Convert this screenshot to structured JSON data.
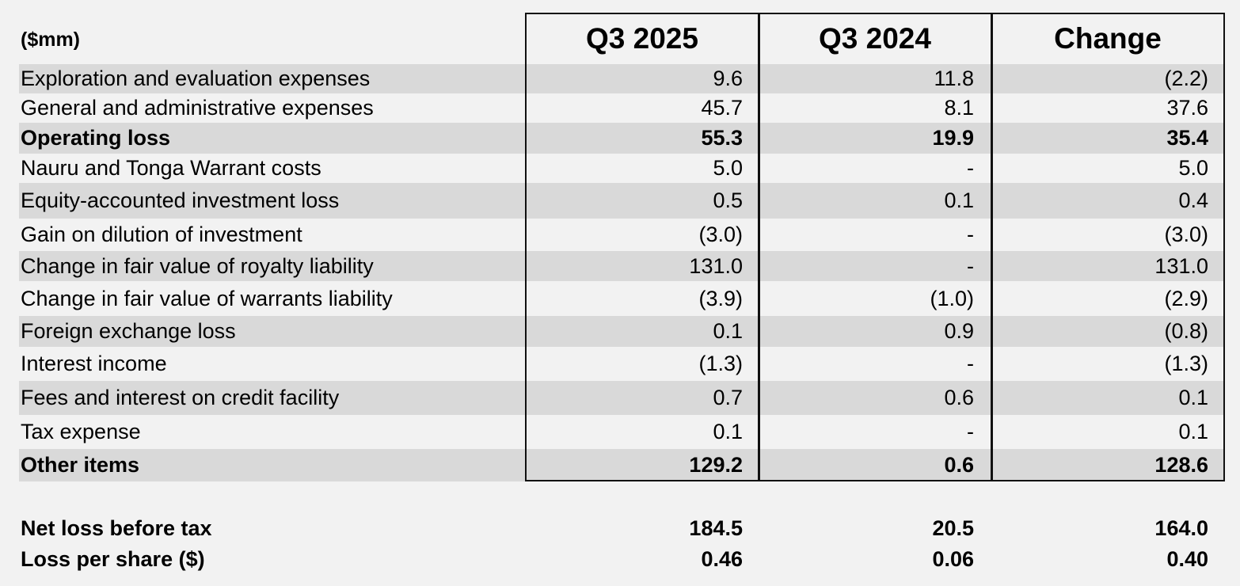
{
  "units_label": "($mm)",
  "columns": [
    "Q3 2025",
    "Q3 2024",
    "Change"
  ],
  "rows": [
    {
      "label": "Exploration and evaluation expenses",
      "values": [
        "9.6",
        "11.8",
        "(2.2)"
      ],
      "shaded": true,
      "bold": false
    },
    {
      "label": "General and administrative expenses",
      "values": [
        "45.7",
        "8.1",
        "37.6"
      ],
      "shaded": false,
      "bold": false
    },
    {
      "label": "Operating loss",
      "values": [
        "55.3",
        "19.9",
        "35.4"
      ],
      "shaded": true,
      "bold": true
    },
    {
      "label": "Nauru and Tonga Warrant costs",
      "values": [
        "5.0",
        "-",
        "5.0"
      ],
      "shaded": false,
      "bold": false
    },
    {
      "label": "Equity-accounted investment loss",
      "values": [
        "0.5",
        "0.1",
        "0.4"
      ],
      "shaded": true,
      "bold": false
    },
    {
      "label": "Gain on dilution of investment",
      "values": [
        "(3.0)",
        "-",
        "(3.0)"
      ],
      "shaded": false,
      "bold": false
    },
    {
      "label": "Change in fair value of royalty liability",
      "values": [
        "131.0",
        "-",
        "131.0"
      ],
      "shaded": true,
      "bold": false
    },
    {
      "label": "Change  in fair value of warrants liability",
      "values": [
        "(3.9)",
        "(1.0)",
        "(2.9)"
      ],
      "shaded": false,
      "bold": false
    },
    {
      "label": "Foreign exchange loss",
      "values": [
        "0.1",
        "0.9",
        "(0.8)"
      ],
      "shaded": true,
      "bold": false
    },
    {
      "label": "Interest income",
      "values": [
        "(1.3)",
        "-",
        "(1.3)"
      ],
      "shaded": false,
      "bold": false
    },
    {
      "label": "Fees  and interest on credit facility",
      "values": [
        "0.7",
        "0.6",
        "0.1"
      ],
      "shaded": true,
      "bold": false
    },
    {
      "label": "Tax expense",
      "values": [
        "0.1",
        "-",
        "0.1"
      ],
      "shaded": false,
      "bold": false
    },
    {
      "label": "Other items",
      "values": [
        "129.2",
        "0.6",
        "128.6"
      ],
      "shaded": true,
      "bold": true
    }
  ],
  "summary_rows": [
    {
      "label": "Net loss before tax",
      "values": [
        "184.5",
        "20.5",
        "164.0"
      ],
      "shaded": false,
      "bold": true
    },
    {
      "label": "Loss per share ($)",
      "values": [
        "0.46",
        "0.06",
        "0.40"
      ],
      "shaded": false,
      "bold": true
    }
  ]
}
